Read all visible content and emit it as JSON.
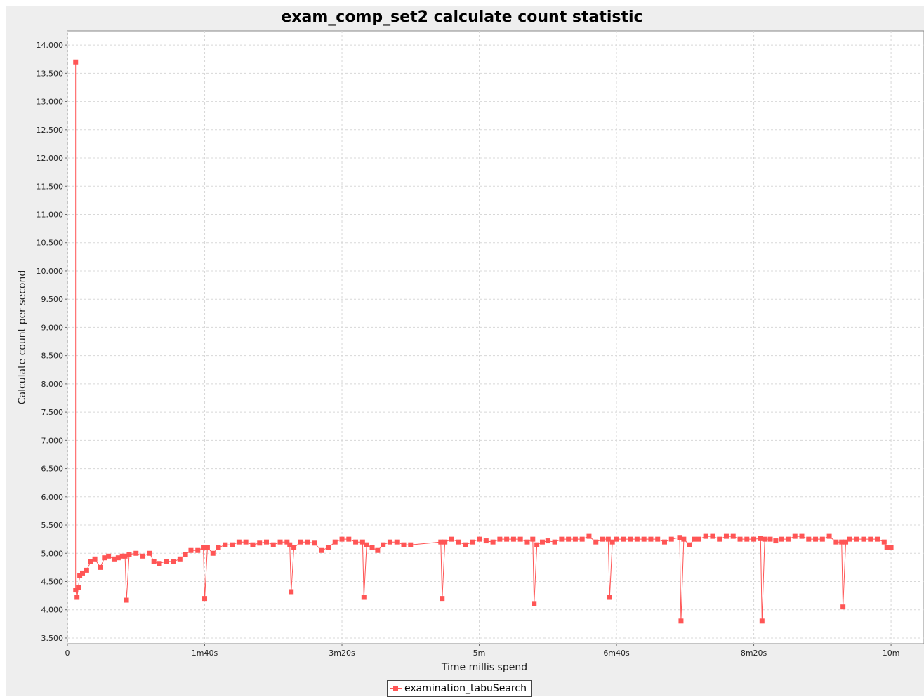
{
  "chart_data": {
    "type": "line",
    "title": "exam_comp_set2 calculate count statistic",
    "xlabel": "Time millis spend",
    "ylabel": "Calculate count per second",
    "x_unit": "milliseconds",
    "xlim": [
      0,
      624000
    ],
    "ylim": [
      3400,
      14250
    ],
    "x_ticks": [
      {
        "value": 0,
        "label": "0"
      },
      {
        "value": 100000,
        "label": "1m40s"
      },
      {
        "value": 200000,
        "label": "3m20s"
      },
      {
        "value": 300000,
        "label": "5m"
      },
      {
        "value": 400000,
        "label": "6m40s"
      },
      {
        "value": 500000,
        "label": "8m20s"
      },
      {
        "value": 600000,
        "label": "10m"
      }
    ],
    "y_ticks": [
      {
        "value": 3500,
        "label": "3.500"
      },
      {
        "value": 4000,
        "label": "4.000"
      },
      {
        "value": 4500,
        "label": "4.500"
      },
      {
        "value": 5000,
        "label": "5.000"
      },
      {
        "value": 5500,
        "label": "5.500"
      },
      {
        "value": 6000,
        "label": "6.000"
      },
      {
        "value": 6500,
        "label": "6.500"
      },
      {
        "value": 7000,
        "label": "7.000"
      },
      {
        "value": 7500,
        "label": "7.500"
      },
      {
        "value": 8000,
        "label": "8.000"
      },
      {
        "value": 8500,
        "label": "8.500"
      },
      {
        "value": 9000,
        "label": "9.000"
      },
      {
        "value": 9500,
        "label": "9.500"
      },
      {
        "value": 10000,
        "label": "10.000"
      },
      {
        "value": 10500,
        "label": "10.500"
      },
      {
        "value": 11000,
        "label": "11.000"
      },
      {
        "value": 11500,
        "label": "11.500"
      },
      {
        "value": 12000,
        "label": "12.000"
      },
      {
        "value": 12500,
        "label": "12.500"
      },
      {
        "value": 13000,
        "label": "13.000"
      },
      {
        "value": 13500,
        "label": "13.500"
      },
      {
        "value": 14000,
        "label": "14.000"
      }
    ],
    "grid": true,
    "legend_position": "bottom",
    "series": [
      {
        "name": "examination_tabuSearch",
        "color": "#ff5555",
        "marker": "square",
        "points": [
          [
            6000,
            13700
          ],
          [
            6000,
            4350
          ],
          [
            7000,
            4220
          ],
          [
            8000,
            4400
          ],
          [
            9000,
            4600
          ],
          [
            11000,
            4650
          ],
          [
            14000,
            4700
          ],
          [
            17000,
            4850
          ],
          [
            20000,
            4900
          ],
          [
            24000,
            4750
          ],
          [
            27000,
            4920
          ],
          [
            30000,
            4950
          ],
          [
            34000,
            4900
          ],
          [
            37000,
            4920
          ],
          [
            40000,
            4950
          ],
          [
            42000,
            4950
          ],
          [
            43000,
            4170
          ],
          [
            45000,
            4980
          ],
          [
            50000,
            5000
          ],
          [
            55000,
            4950
          ],
          [
            60000,
            5000
          ],
          [
            63000,
            4850
          ],
          [
            67000,
            4820
          ],
          [
            72000,
            4860
          ],
          [
            77000,
            4850
          ],
          [
            82000,
            4900
          ],
          [
            86000,
            4980
          ],
          [
            90000,
            5050
          ],
          [
            95000,
            5050
          ],
          [
            99000,
            5100
          ],
          [
            100000,
            4200
          ],
          [
            102000,
            5100
          ],
          [
            106000,
            5000
          ],
          [
            110000,
            5100
          ],
          [
            115000,
            5150
          ],
          [
            120000,
            5150
          ],
          [
            125000,
            5200
          ],
          [
            130000,
            5200
          ],
          [
            135000,
            5150
          ],
          [
            140000,
            5180
          ],
          [
            145000,
            5200
          ],
          [
            150000,
            5150
          ],
          [
            155000,
            5200
          ],
          [
            160000,
            5200
          ],
          [
            162000,
            5150
          ],
          [
            163000,
            4320
          ],
          [
            165000,
            5100
          ],
          [
            170000,
            5200
          ],
          [
            175000,
            5200
          ],
          [
            180000,
            5180
          ],
          [
            185000,
            5050
          ],
          [
            190000,
            5100
          ],
          [
            195000,
            5200
          ],
          [
            200000,
            5250
          ],
          [
            205000,
            5250
          ],
          [
            210000,
            5200
          ],
          [
            215000,
            5200
          ],
          [
            216000,
            4220
          ],
          [
            218000,
            5150
          ],
          [
            222000,
            5100
          ],
          [
            226000,
            5050
          ],
          [
            230000,
            5150
          ],
          [
            235000,
            5200
          ],
          [
            240000,
            5200
          ],
          [
            245000,
            5150
          ],
          [
            250000,
            5150
          ],
          [
            272000,
            5200
          ],
          [
            273000,
            4200
          ],
          [
            275000,
            5200
          ],
          [
            280000,
            5250
          ],
          [
            285000,
            5200
          ],
          [
            290000,
            5150
          ],
          [
            295000,
            5200
          ],
          [
            300000,
            5250
          ],
          [
            305000,
            5220
          ],
          [
            310000,
            5200
          ],
          [
            315000,
            5250
          ],
          [
            320000,
            5250
          ],
          [
            325000,
            5250
          ],
          [
            330000,
            5250
          ],
          [
            335000,
            5200
          ],
          [
            339000,
            5250
          ],
          [
            340000,
            4110
          ],
          [
            342000,
            5150
          ],
          [
            346000,
            5200
          ],
          [
            350000,
            5220
          ],
          [
            355000,
            5200
          ],
          [
            360000,
            5250
          ],
          [
            365000,
            5250
          ],
          [
            370000,
            5250
          ],
          [
            375000,
            5250
          ],
          [
            380000,
            5300
          ],
          [
            385000,
            5200
          ],
          [
            390000,
            5250
          ],
          [
            394000,
            5250
          ],
          [
            395000,
            4220
          ],
          [
            397000,
            5200
          ],
          [
            400000,
            5250
          ],
          [
            405000,
            5250
          ],
          [
            410000,
            5250
          ],
          [
            415000,
            5250
          ],
          [
            420000,
            5250
          ],
          [
            425000,
            5250
          ],
          [
            430000,
            5250
          ],
          [
            435000,
            5200
          ],
          [
            440000,
            5250
          ],
          [
            446000,
            5280
          ],
          [
            447000,
            3800
          ],
          [
            449000,
            5250
          ],
          [
            453000,
            5150
          ],
          [
            457000,
            5250
          ],
          [
            460000,
            5250
          ],
          [
            465000,
            5300
          ],
          [
            470000,
            5300
          ],
          [
            475000,
            5250
          ],
          [
            480000,
            5300
          ],
          [
            485000,
            5300
          ],
          [
            490000,
            5250
          ],
          [
            495000,
            5250
          ],
          [
            500000,
            5250
          ],
          [
            505000,
            5260
          ],
          [
            506000,
            3800
          ],
          [
            508000,
            5250
          ],
          [
            512000,
            5250
          ],
          [
            516000,
            5220
          ],
          [
            520000,
            5250
          ],
          [
            525000,
            5250
          ],
          [
            530000,
            5300
          ],
          [
            535000,
            5300
          ],
          [
            540000,
            5250
          ],
          [
            545000,
            5250
          ],
          [
            550000,
            5250
          ],
          [
            555000,
            5300
          ],
          [
            560000,
            5200
          ],
          [
            564000,
            5200
          ],
          [
            565000,
            4050
          ],
          [
            567000,
            5200
          ],
          [
            570000,
            5250
          ],
          [
            575000,
            5250
          ],
          [
            580000,
            5250
          ],
          [
            585000,
            5250
          ],
          [
            590000,
            5250
          ],
          [
            595000,
            5200
          ],
          [
            597000,
            5100
          ],
          [
            600000,
            5100
          ]
        ]
      }
    ]
  }
}
